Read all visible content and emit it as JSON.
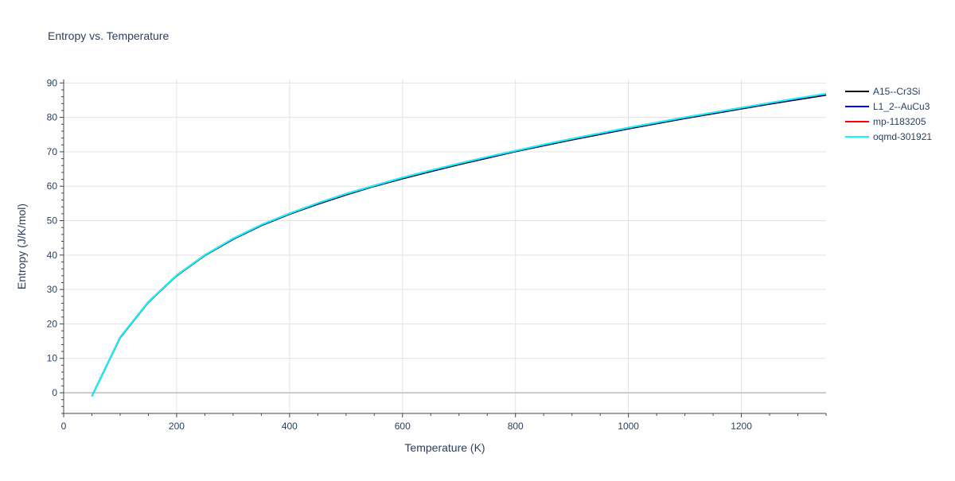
{
  "chart_data": {
    "type": "line",
    "title": "Entropy vs. Temperature",
    "xlabel": "Temperature (K)",
    "ylabel": "Entropy (J/K/mol)",
    "xlim": [
      0,
      1350
    ],
    "ylim": [
      -6,
      91
    ],
    "x_ticks": [
      0,
      200,
      400,
      600,
      800,
      1000,
      1200
    ],
    "y_ticks": [
      0,
      10,
      20,
      30,
      40,
      50,
      60,
      70,
      80,
      90
    ],
    "grid": true,
    "legend_position": "right",
    "series": [
      {
        "name": "A15--Cr3Si",
        "color": "#000000",
        "x": [
          50,
          100,
          150,
          200,
          250,
          300,
          350,
          400,
          450,
          500,
          550,
          600,
          650,
          700,
          750,
          800,
          850,
          900,
          950,
          1000,
          1050,
          1100,
          1150,
          1200,
          1250,
          1300,
          1350
        ],
        "y": [
          -1.0,
          16.0,
          26.3,
          34.0,
          39.9,
          44.6,
          48.6,
          51.9,
          54.8,
          57.5,
          60.0,
          62.2,
          64.3,
          66.3,
          68.2,
          70.1,
          71.8,
          73.5,
          75.1,
          76.7,
          78.2,
          79.7,
          81.1,
          82.5,
          83.9,
          85.2,
          86.5
        ]
      },
      {
        "name": "L1_2--AuCu3",
        "color": "#0000ff",
        "x": [
          50,
          100,
          150,
          200,
          250,
          300,
          350,
          400,
          450,
          500,
          550,
          600,
          650,
          700,
          750,
          800,
          850,
          900,
          950,
          1000,
          1050,
          1100,
          1150,
          1200,
          1250,
          1300,
          1350
        ],
        "y": [
          -1.0,
          16.1,
          26.4,
          34.1,
          40.0,
          44.7,
          48.7,
          52.0,
          55.0,
          57.7,
          60.1,
          62.4,
          64.5,
          66.5,
          68.4,
          70.2,
          72.0,
          73.7,
          75.3,
          76.9,
          78.4,
          79.9,
          81.3,
          82.7,
          84.1,
          85.4,
          86.7
        ]
      },
      {
        "name": "mp-1183205",
        "color": "#ff0000",
        "x": [
          50,
          100,
          150,
          200,
          250,
          300,
          350,
          400,
          450,
          500,
          550,
          600,
          650,
          700,
          750,
          800,
          850,
          900,
          950,
          1000,
          1050,
          1100,
          1150,
          1200,
          1250,
          1300,
          1350
        ],
        "y": [
          -1.0,
          16.1,
          26.4,
          34.1,
          40.0,
          44.8,
          48.8,
          52.1,
          55.1,
          57.8,
          60.2,
          62.5,
          64.6,
          66.6,
          68.5,
          70.3,
          72.1,
          73.8,
          75.4,
          77.0,
          78.5,
          80.0,
          81.4,
          82.8,
          84.2,
          85.5,
          86.8
        ]
      },
      {
        "name": "oqmd-301921",
        "color": "#00ffff",
        "x": [
          50,
          100,
          150,
          200,
          250,
          300,
          350,
          400,
          450,
          500,
          550,
          600,
          650,
          700,
          750,
          800,
          850,
          900,
          950,
          1000,
          1050,
          1100,
          1150,
          1200,
          1250,
          1300,
          1350
        ],
        "y": [
          -1.0,
          16.1,
          26.4,
          34.1,
          40.0,
          44.8,
          48.8,
          52.1,
          55.1,
          57.8,
          60.2,
          62.5,
          64.6,
          66.6,
          68.5,
          70.3,
          72.1,
          73.8,
          75.4,
          77.0,
          78.5,
          80.0,
          81.4,
          82.8,
          84.2,
          85.6,
          86.9
        ]
      }
    ]
  }
}
